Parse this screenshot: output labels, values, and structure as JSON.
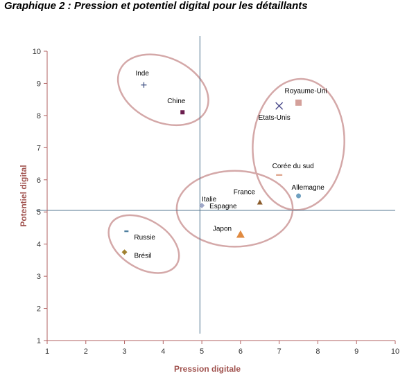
{
  "chart_data": {
    "type": "scatter",
    "title": "Graphique 2 : Pression et potentiel digital pour les détaillants",
    "xlabel": "Pression digitale",
    "ylabel": "Potentiel  digital",
    "xlim": [
      1,
      10
    ],
    "ylim": [
      1,
      10
    ],
    "xticks": [
      "1",
      "2",
      "3",
      "4",
      "5",
      "6",
      "7",
      "8",
      "9",
      "10"
    ],
    "yticks": [
      "1",
      "2",
      "3",
      "4",
      "5",
      "6",
      "7",
      "8",
      "9",
      "10"
    ],
    "grid": false,
    "reference_lines": {
      "x": 4.95,
      "y": 5.05
    },
    "colors": {
      "axis": "#b06060",
      "reference_line": "#4a6f8a",
      "ellipse": "#d4a8a8"
    },
    "points": [
      {
        "label": "Inde",
        "x": 3.5,
        "y": 8.95,
        "marker": "plus",
        "color": "#4a5a8a"
      },
      {
        "label": "Chine",
        "x": 4.5,
        "y": 8.1,
        "marker": "square",
        "color": "#6b1e4e"
      },
      {
        "label": "Royaume-Uni",
        "x": 7.5,
        "y": 8.4,
        "marker": "square",
        "color": "#d4a09a"
      },
      {
        "label": "Etats-Unis",
        "x": 7.0,
        "y": 8.3,
        "marker": "cross",
        "color": "#4a4a8a"
      },
      {
        "label": "Corée du sud",
        "x": 7.0,
        "y": 6.15,
        "marker": "dash",
        "color": "#e0a890"
      },
      {
        "label": "Allemagne",
        "x": 7.5,
        "y": 5.5,
        "marker": "circle",
        "color": "#6fa0c0"
      },
      {
        "label": "Italie",
        "x": 5.0,
        "y": 5.2,
        "marker": "diamond",
        "color": "#a0a8c8"
      },
      {
        "label": "Espagne",
        "x": 5.0,
        "y": 5.2,
        "marker": "none",
        "color": "#a0a8c8"
      },
      {
        "label": "France",
        "x": 6.5,
        "y": 5.3,
        "marker": "triangle",
        "color": "#8a5a2a"
      },
      {
        "label": "Japon",
        "x": 6.0,
        "y": 4.3,
        "marker": "triangle",
        "color": "#e08a40"
      },
      {
        "label": "Russie",
        "x": 3.05,
        "y": 4.4,
        "marker": "dash",
        "color": "#5080a0"
      },
      {
        "label": "Brésil",
        "x": 3.0,
        "y": 3.75,
        "marker": "diamond",
        "color": "#a08030"
      }
    ],
    "ellipses": [
      {
        "group": [
          "Inde",
          "Chine"
        ],
        "cx": 4.0,
        "cy": 8.8,
        "rx": 1.23,
        "ry": 1.0,
        "rotation": 25
      },
      {
        "group": [
          "Royaume-Uni",
          "Etats-Unis",
          "Corée du sud",
          "Allemagne"
        ],
        "cx": 7.5,
        "cy": 7.1,
        "rx": 1.7,
        "ry": 1.42,
        "rotation": -86
      },
      {
        "group": [
          "Italie",
          "Espagne",
          "France",
          "Japon"
        ],
        "cx": 5.85,
        "cy": 5.1,
        "rx": 1.5,
        "ry": 1.18,
        "rotation": 0
      },
      {
        "group": [
          "Russie",
          "Brésil"
        ],
        "cx": 3.5,
        "cy": 4.0,
        "rx": 1.0,
        "ry": 0.75,
        "rotation": 32
      }
    ]
  }
}
